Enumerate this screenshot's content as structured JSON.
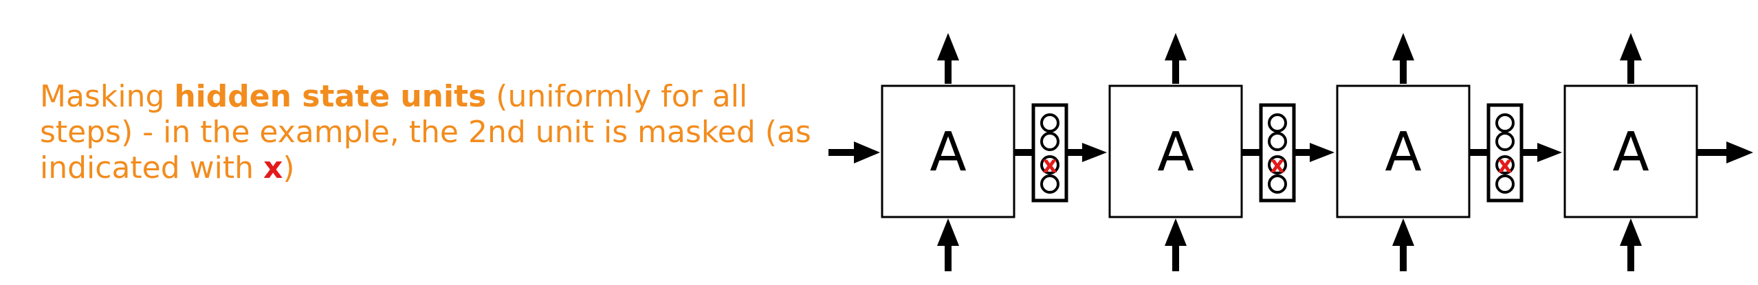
{
  "caption": {
    "part1": "Masking ",
    "bold": "hidden state units",
    "part2": " (uniformly for all steps) - in the example, the 2nd unit is masked (as indicated with ",
    "mark": "x",
    "part3": ")"
  },
  "cells": [
    {
      "label": "A"
    },
    {
      "label": "A"
    },
    {
      "label": "A"
    },
    {
      "label": "A"
    }
  ],
  "mask_symbol": "x",
  "masked_unit_index": 2,
  "units_per_state": 4,
  "colors": {
    "caption": "#f28c1d",
    "mask": "#e31b1b",
    "lines": "#000000"
  }
}
